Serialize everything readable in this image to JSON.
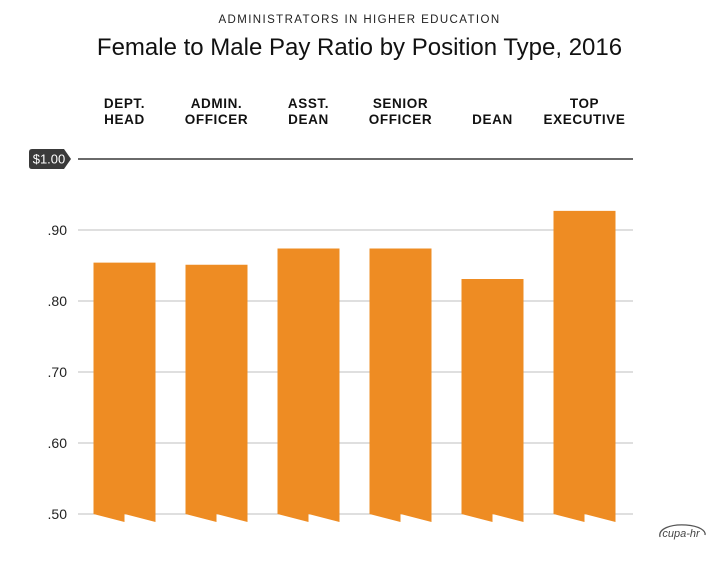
{
  "header": {
    "subtitle": "ADMINISTRATORS IN HIGHER EDUCATION",
    "title": "Female to Male Pay Ratio by Position Type, 2016"
  },
  "logo": {
    "text": "cupa-hr"
  },
  "colors": {
    "bar": "#EE8C23",
    "grid": "#bfbfbf",
    "axis": "#111111"
  },
  "chart_data": {
    "type": "bar",
    "title": "Female to Male Pay Ratio by Position Type, 2016",
    "subtitle": "ADMINISTRATORS IN HIGHER EDUCATION",
    "categories": [
      [
        "DEPT.",
        "HEAD"
      ],
      [
        "ADMIN.",
        "OFFICER"
      ],
      [
        "ASST.",
        "DEAN"
      ],
      [
        "SENIOR",
        "OFFICER"
      ],
      [
        "DEAN"
      ],
      [
        "TOP",
        "EXECUTIVE"
      ]
    ],
    "values": [
      0.854,
      0.851,
      0.874,
      0.874,
      0.831,
      0.927
    ],
    "ylim": [
      0.5,
      1.0
    ],
    "yticks": [
      0.5,
      0.6,
      0.7,
      0.8,
      0.9,
      1.0
    ],
    "ytick_labels": [
      ".50",
      ".60",
      ".70",
      ".80",
      ".90",
      "$1.00"
    ],
    "grid": true,
    "legend": "none"
  }
}
